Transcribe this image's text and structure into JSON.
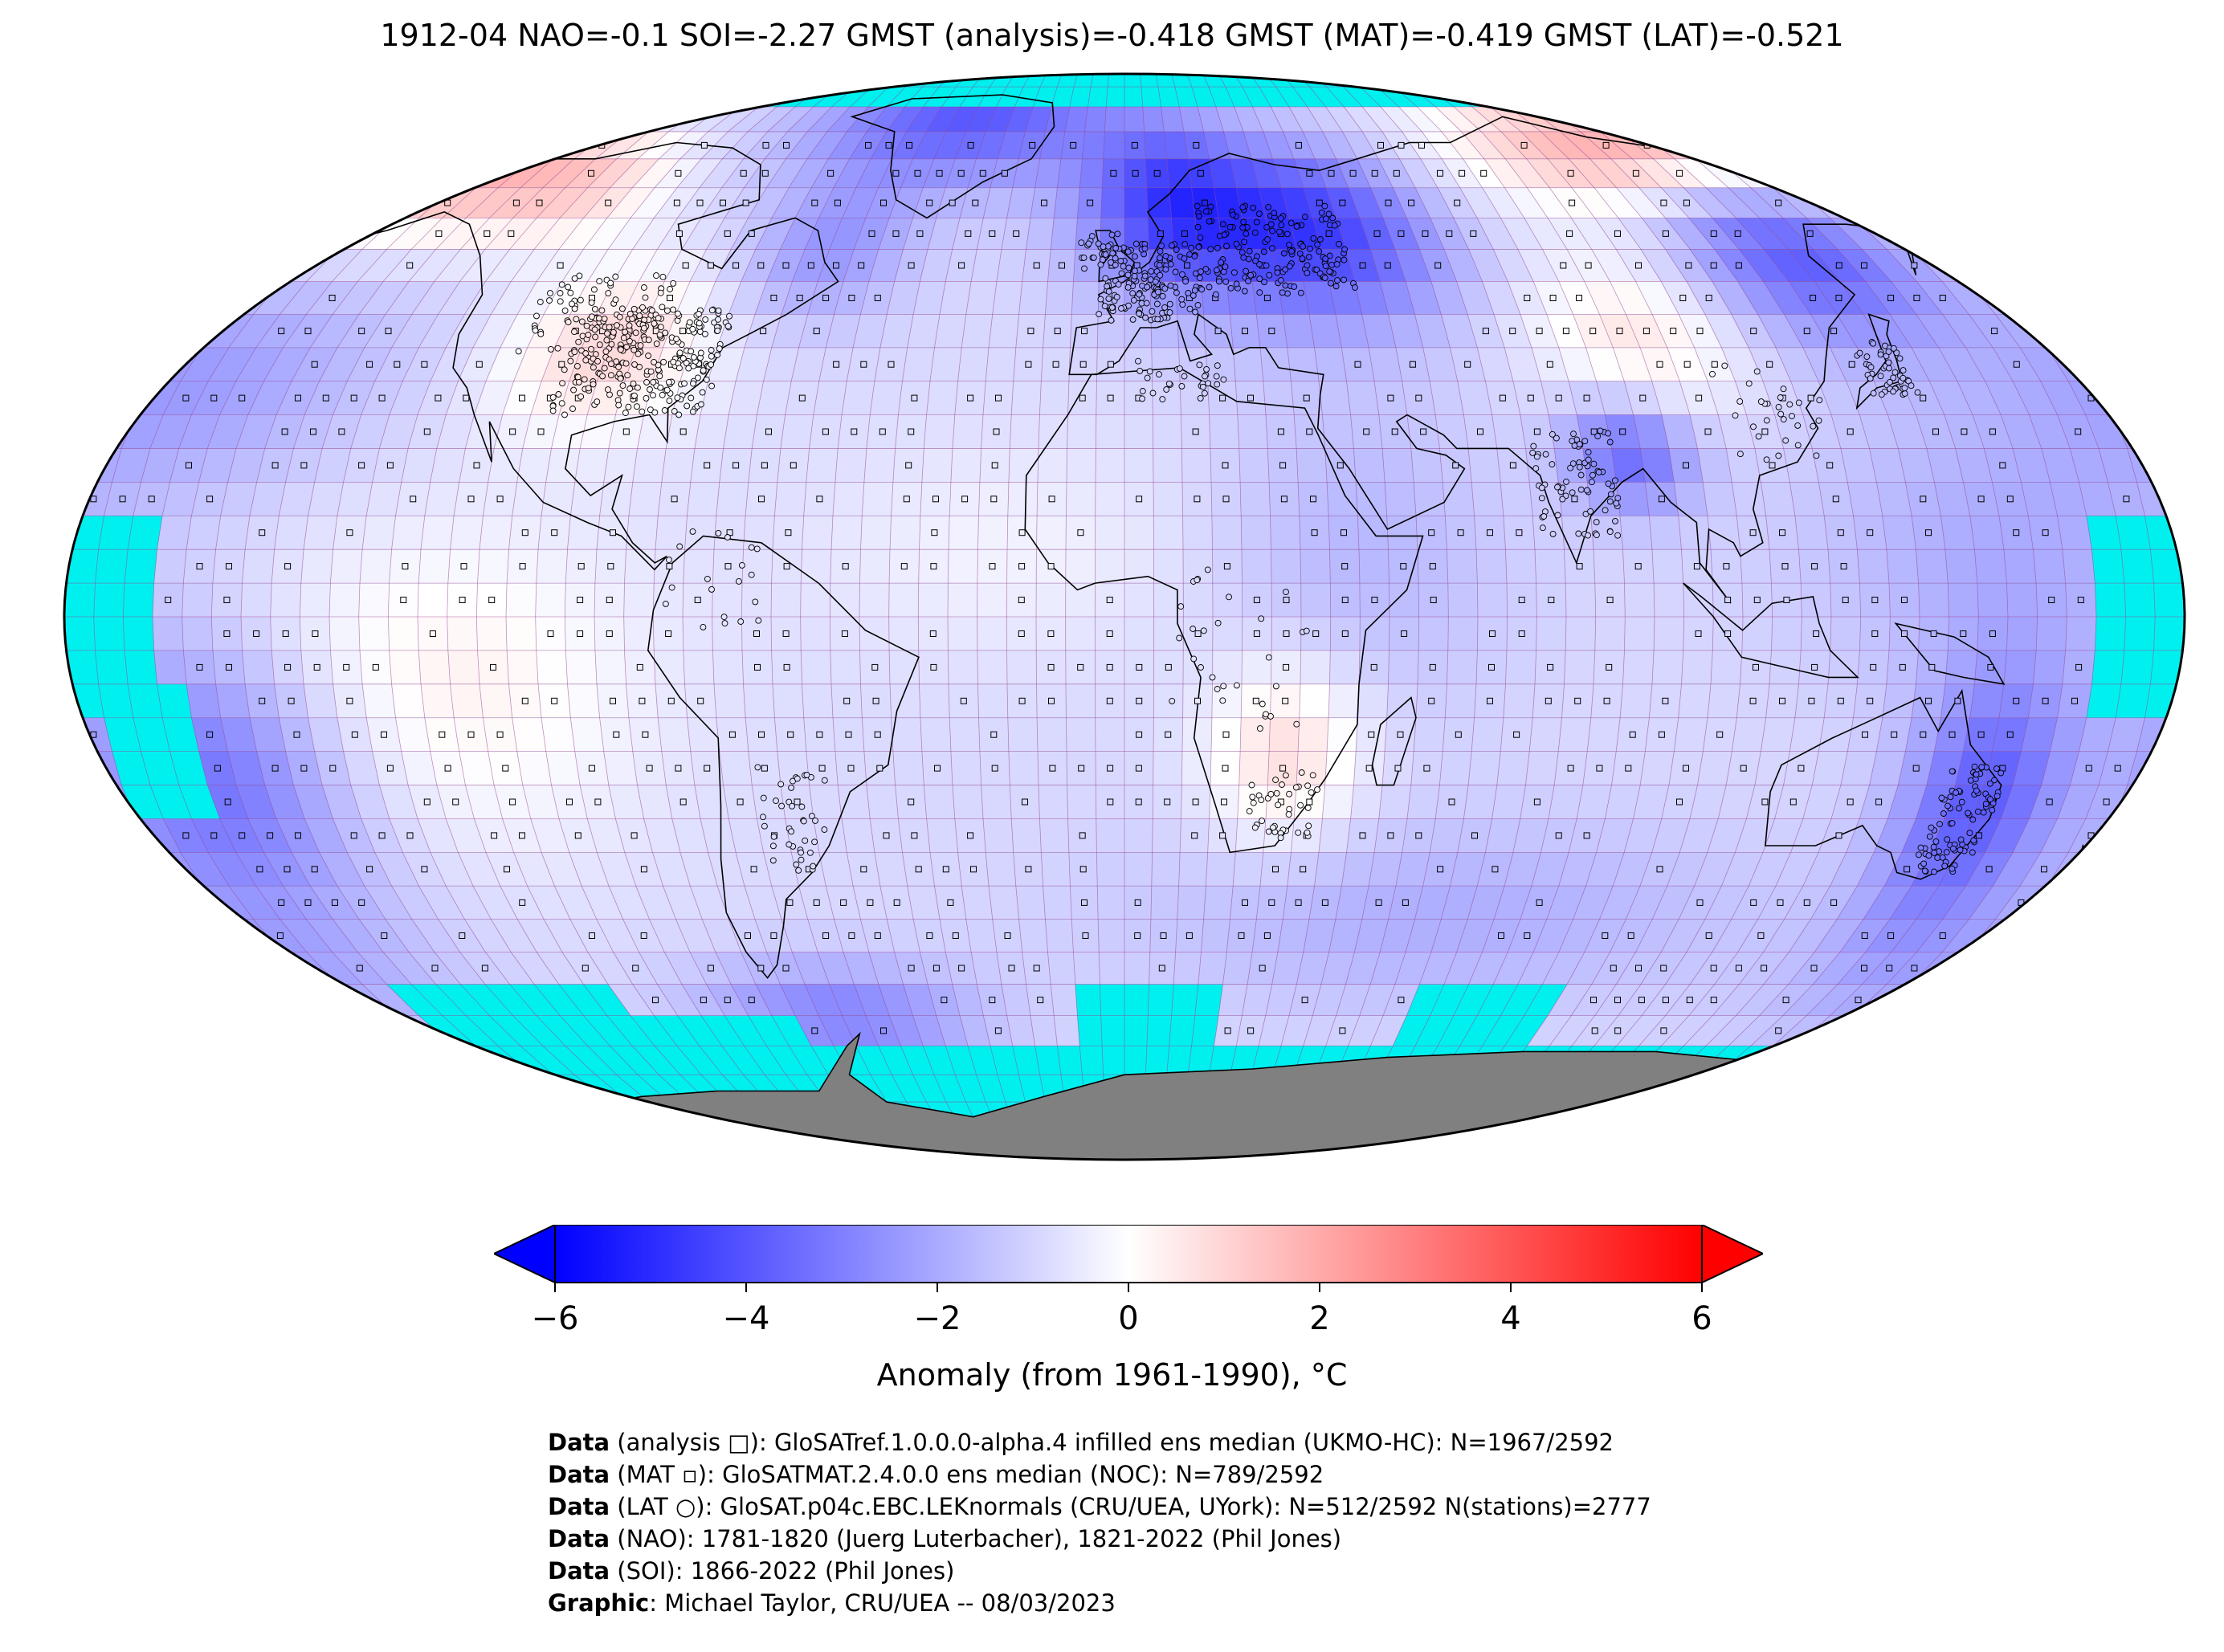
{
  "title": "1912-04 NAO=-0.1 SOI=-2.27 GMST (analysis)=-0.418 GMST (MAT)=-0.419 GMST (LAT)=-0.521",
  "colors": {
    "missing_data": "#00f0f0",
    "land_mask": "#808080",
    "cold": "#0000ff",
    "neutral": "#ffffff",
    "warm": "#ff0000",
    "grid_line": "#a03c8c",
    "coast_line": "#000000"
  },
  "map": {
    "projection": "Robinson",
    "grid_resolution_deg": 5,
    "regions": [
      {
        "name": "North America interior",
        "anomaly": 1.8
      },
      {
        "name": "Alaska / Arctic Canada",
        "anomaly": 2.5
      },
      {
        "name": "Greenland / Arctic Atlantic",
        "anomaly": -3.0
      },
      {
        "name": "Europe / Scandinavia",
        "anomaly": -3.2
      },
      {
        "name": "Western Siberia",
        "anomaly": -3.5
      },
      {
        "name": "Eastern Siberia / Arctic Russia",
        "anomaly": 3.0
      },
      {
        "name": "Northeast Asia / Japan",
        "anomaly": -3.0
      },
      {
        "name": "Tibet / Central Asia",
        "anomaly": 1.5
      },
      {
        "name": "South Asia / Bangladesh",
        "anomaly": -2.5
      },
      {
        "name": "Southern Africa",
        "anomaly": 1.8
      },
      {
        "name": "Tropical East Pacific",
        "anomaly": 1.2
      },
      {
        "name": "South Pacific (west)",
        "anomaly": -2.5
      },
      {
        "name": "Southern Ocean / Drake Passage",
        "anomaly": -2.0
      },
      {
        "name": "Australia east",
        "anomaly": -2.8
      }
    ]
  },
  "colorbar": {
    "vmin": -6,
    "vmax": 6,
    "ticks": [
      "−6",
      "−4",
      "−2",
      "0",
      "2",
      "4",
      "6"
    ],
    "tick_values": [
      -6,
      -4,
      -2,
      0,
      2,
      4,
      6
    ],
    "extend": "both",
    "label": "Anomaly (from 1961-1990), °C"
  },
  "footer": [
    {
      "bold": "Data",
      "text": " (analysis □): GloSATref.1.0.0.0-alpha.4 infilled ens median (UKMO-HC): N=1967/2592"
    },
    {
      "bold": "Data",
      "text": " (MAT ▫): GloSATMAT.2.4.0.0 ens median (NOC): N=789/2592"
    },
    {
      "bold": "Data",
      "text": " (LAT ○): GloSAT.p04c.EBC.LEKnormals (CRU/UEA, UYork): N=512/2592 N(stations)=2777"
    },
    {
      "bold": "Data",
      "text": " (NAO): 1781-1820 (Juerg Luterbacher), 1821-2022 (Phil Jones)"
    },
    {
      "bold": "Data",
      "text": " (SOI): 1866-2022 (Phil Jones)"
    },
    {
      "bold": "Graphic",
      "text": ": Michael Taylor, CRU/UEA -- 08/03/2023"
    }
  ]
}
